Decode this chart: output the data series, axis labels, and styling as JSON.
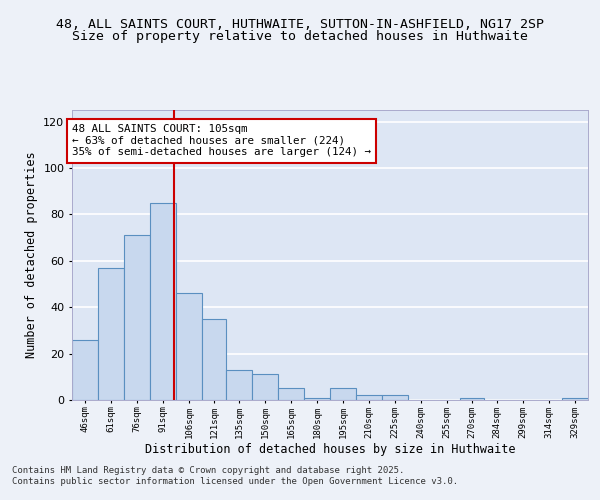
{
  "title": "48, ALL SAINTS COURT, HUTHWAITE, SUTTON-IN-ASHFIELD, NG17 2SP",
  "subtitle": "Size of property relative to detached houses in Huthwaite",
  "xlabel": "Distribution of detached houses by size in Huthwaite",
  "ylabel": "Number of detached properties",
  "bar_edges": [
    46,
    61,
    76,
    91,
    106,
    121,
    135,
    150,
    165,
    180,
    195,
    210,
    225,
    240,
    255,
    270,
    284,
    299,
    314,
    329,
    344
  ],
  "bar_heights": [
    26,
    57,
    71,
    85,
    46,
    35,
    13,
    11,
    5,
    1,
    5,
    2,
    2,
    0,
    0,
    1,
    0,
    0,
    0,
    1
  ],
  "bar_color": "#c8d8ee",
  "bar_edge_color": "#5a8fc0",
  "vline_x": 105,
  "vline_color": "#cc0000",
  "annotation_text": "48 ALL SAINTS COURT: 105sqm\n← 63% of detached houses are smaller (224)\n35% of semi-detached houses are larger (124) →",
  "annotation_box_color": "#ffffff",
  "annotation_box_edge_color": "#cc0000",
  "ylim": [
    0,
    125
  ],
  "yticks": [
    0,
    20,
    40,
    60,
    80,
    100,
    120
  ],
  "background_color": "#dde6f4",
  "fig_background_color": "#edf1f8",
  "grid_color": "#ffffff",
  "footer_line1": "Contains HM Land Registry data © Crown copyright and database right 2025.",
  "footer_line2": "Contains public sector information licensed under the Open Government Licence v3.0.",
  "title_fontsize": 9.5,
  "subtitle_fontsize": 9.5,
  "tick_label_fontsize": 6.5,
  "xlabel_fontsize": 8.5,
  "ylabel_fontsize": 8.5,
  "annotation_fontsize": 7.8,
  "footer_fontsize": 6.5
}
